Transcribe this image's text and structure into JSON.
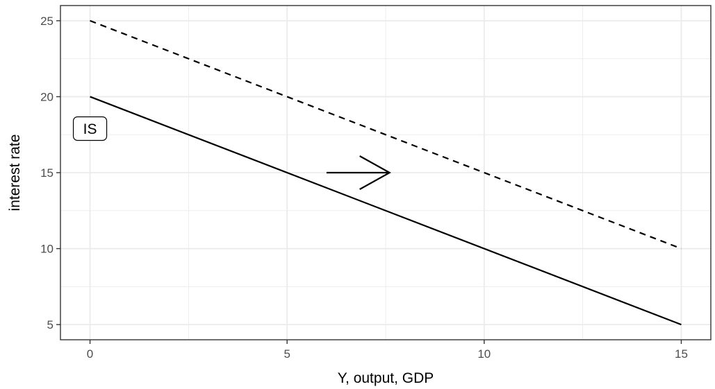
{
  "chart_data": {
    "type": "line",
    "title": "",
    "xlabel": "Y, output, GDP",
    "ylabel": "interest rate",
    "xlim": [
      -0.75,
      15.75
    ],
    "ylim": [
      4.0,
      26.0
    ],
    "x_ticks": [
      0,
      5,
      10,
      15
    ],
    "x_tick_labels": [
      "0",
      "5",
      "10",
      "15"
    ],
    "y_ticks": [
      5,
      10,
      15,
      20,
      25
    ],
    "y_tick_labels": [
      "5",
      "10",
      "15",
      "20",
      "25"
    ],
    "x_minor_grid": [
      2.5,
      7.5,
      12.5
    ],
    "y_minor_grid": [
      7.5,
      12.5,
      17.5,
      22.5
    ],
    "grid": true,
    "legend": "none",
    "series": [
      {
        "style": "solid",
        "color": "#000000",
        "x": [
          0,
          15
        ],
        "y": [
          20,
          5
        ]
      },
      {
        "style": "dashed",
        "color": "#000000",
        "x": [
          0,
          15
        ],
        "y": [
          25,
          10
        ]
      }
    ],
    "annotations": [
      {
        "type": "label",
        "text": "IS",
        "x": 0,
        "y": 17.9
      },
      {
        "type": "arrow",
        "x_start": 6,
        "x_end": 7.6,
        "y": 15
      }
    ],
    "colors": {
      "grid": "#ebebeb",
      "panel_border": "#333333",
      "tick_text": "#4d4d4d",
      "line": "#000000"
    }
  }
}
